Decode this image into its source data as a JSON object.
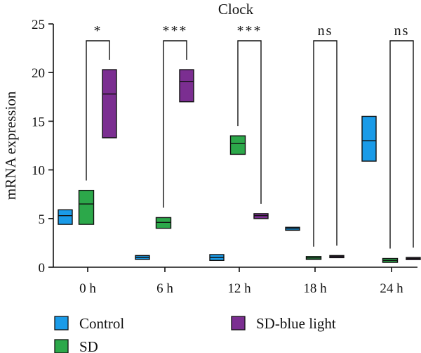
{
  "chart_data": {
    "type": "box",
    "title": "Clock",
    "ylabel": "mRNA expression",
    "xlabel": "",
    "ylim": [
      0,
      25
    ],
    "yticks": [
      0,
      5,
      10,
      15,
      20,
      25
    ],
    "categories": [
      "0 h",
      "6 h",
      "12 h",
      "18 h",
      "24 h"
    ],
    "series": [
      {
        "name": "Control",
        "color": "#1a9be8",
        "boxes": [
          {
            "min": 4.4,
            "median": 5.3,
            "max": 5.9
          },
          {
            "min": 0.8,
            "median": 1.0,
            "max": 1.2
          },
          {
            "min": 0.7,
            "median": 1.0,
            "max": 1.3
          },
          {
            "min": 3.8,
            "median": 3.95,
            "max": 4.1
          },
          {
            "min": 10.9,
            "median": 13.0,
            "max": 15.5
          }
        ]
      },
      {
        "name": "SD",
        "color": "#2ca84a",
        "boxes": [
          {
            "min": 4.4,
            "median": 6.5,
            "max": 7.9
          },
          {
            "min": 4.0,
            "median": 4.6,
            "max": 5.1
          },
          {
            "min": 11.6,
            "median": 12.7,
            "max": 13.5
          },
          {
            "min": 0.8,
            "median": 0.95,
            "max": 1.1
          },
          {
            "min": 0.5,
            "median": 0.7,
            "max": 0.9
          }
        ]
      },
      {
        "name": "SD-blue light",
        "color": "#7b2e91",
        "boxes": [
          {
            "min": 13.3,
            "median": 17.8,
            "max": 20.3
          },
          {
            "min": 17.0,
            "median": 19.1,
            "max": 20.3
          },
          {
            "min": 5.0,
            "median": 5.3,
            "max": 5.5
          },
          {
            "min": 1.0,
            "median": 1.1,
            "max": 1.2
          },
          {
            "min": 0.8,
            "median": 0.9,
            "max": 1.0
          }
        ]
      }
    ],
    "significance": [
      {
        "category": "0 h",
        "label": "*",
        "from": "SD",
        "to": "SD-blue light"
      },
      {
        "category": "6 h",
        "label": "***",
        "from": "SD",
        "to": "SD-blue light"
      },
      {
        "category": "12 h",
        "label": "***",
        "from": "SD",
        "to": "SD-blue light"
      },
      {
        "category": "18 h",
        "label": "ns",
        "from": "SD",
        "to": "SD-blue light"
      },
      {
        "category": "24 h",
        "label": "ns",
        "from": "SD",
        "to": "SD-blue light"
      }
    ],
    "legend": {
      "placement": "bottom",
      "items": [
        "Control",
        "SD-blue light",
        "SD"
      ]
    }
  }
}
